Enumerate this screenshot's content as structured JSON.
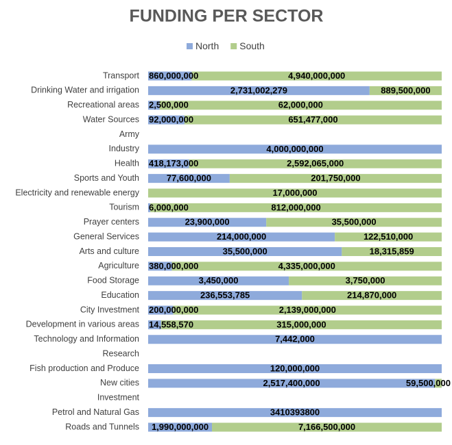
{
  "chart_data": {
    "type": "bar",
    "orientation": "horizontal",
    "stacking": "percent",
    "title": "FUNDING PER SECTOR",
    "legend": "top",
    "categories": [
      "Transport",
      "Drinking Water and irrigation",
      "Recreational areas",
      "Water Sources",
      "Army",
      "Industry",
      "Health",
      "Sports and Youth",
      "Electricity and renewable energy",
      "Tourism",
      "Prayer centers",
      "General Services",
      "Arts and culture",
      "Agriculture",
      "Food Storage",
      "Education",
      "City Investment",
      "Development in various areas",
      "Technology and Information",
      "Research",
      "Fish production and Produce",
      "New cities",
      "Investment",
      "Petrol and Natural Gas",
      "Roads and Tunnels"
    ],
    "series": [
      {
        "name": "North",
        "color": "#8eaadb",
        "values": [
          860000000,
          2731002279,
          2500000,
          92000000,
          null,
          4000000000,
          418173000,
          77600000,
          null,
          6000000,
          23900000,
          214000000,
          35500000,
          380000000,
          3450000,
          236553785,
          200000000,
          14558570,
          7442000,
          null,
          120000000,
          2517400000,
          null,
          3410393800,
          1990000000
        ],
        "value_labels": [
          "860,000,000",
          "2,731,002,279",
          "2,500,000",
          "92,000,000",
          null,
          "4,000,000,000",
          "418,173,000",
          "77,600,000",
          null,
          "6,000,000",
          "23,900,000",
          "214,000,000",
          "35,500,000",
          "380,000,000",
          "3,450,000",
          "236,553,785",
          "200,000,000",
          "14,558,570",
          "7,442,000",
          null,
          "120,000,000",
          "2,517,400,000",
          null,
          "3410393800",
          "1,990,000,000"
        ]
      },
      {
        "name": "South",
        "color": "#b2cd8c",
        "values": [
          4940000000,
          889500000,
          62000000,
          651477000,
          null,
          null,
          2592065000,
          201750000,
          17000000,
          812000000,
          35500000,
          122510000,
          18315859,
          4335000000,
          3750000,
          214870000,
          2139000000,
          315000000,
          null,
          null,
          null,
          59500000,
          null,
          null,
          7166500000
        ],
        "value_labels": [
          "4,940,000,000",
          "889,500,000",
          "62,000,000",
          "651,477,000",
          null,
          null,
          "2,592,065,000",
          "201,750,000",
          "17,000,000",
          "812,000,000",
          "35,500,000",
          "122,510,000",
          "18,315,859",
          "4,335,000,000",
          "3,750,000",
          "214,870,000",
          "2,139,000,000",
          "315,000,000",
          null,
          null,
          null,
          "59,500,000",
          null,
          null,
          "7,166,500,000"
        ]
      }
    ]
  }
}
